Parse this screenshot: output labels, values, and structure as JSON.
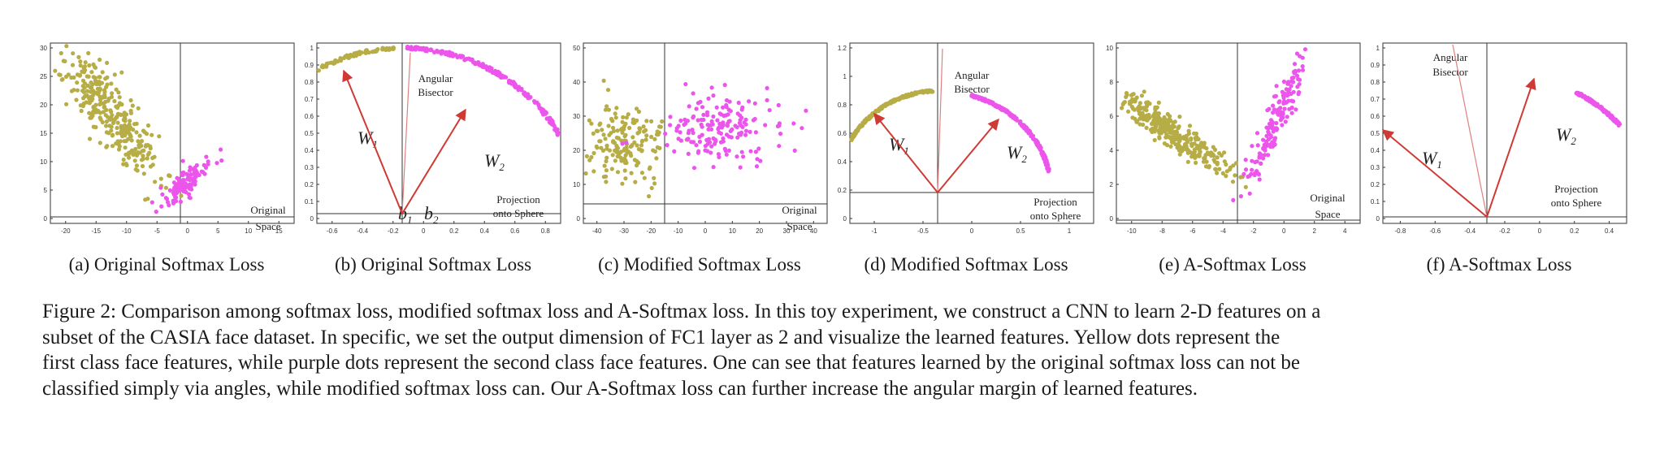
{
  "panels": [
    {
      "caption": "(a) Original Softmax Loss",
      "xticks": [
        "-20",
        "-15",
        "-10",
        "-5",
        "0",
        "5",
        "10",
        "15"
      ],
      "yticks": [
        "0",
        "5",
        "10",
        "15",
        "20",
        "25",
        "30"
      ],
      "texts": [
        [
          "Original",
          290,
          218
        ],
        [
          "Space",
          290,
          238
        ]
      ]
    },
    {
      "caption": "(b) Original Softmax Loss",
      "xticks": [
        "-0.6",
        "-0.4",
        "-0.2",
        "0",
        "0.2",
        "0.4",
        "0.6",
        "0.8"
      ],
      "yticks": [
        "0",
        "0.1",
        "0.2",
        "0.3",
        "0.4",
        "0.5",
        "0.6",
        "0.7",
        "0.8",
        "0.9",
        "1"
      ],
      "texts": [
        [
          "Angular",
          168,
          56
        ],
        [
          "Bisector",
          168,
          73
        ],
        [
          "Projection",
          270,
          205
        ],
        [
          "onto Sphere",
          270,
          222
        ]
      ],
      "vectors": [
        [
          "W",
          "1",
          72,
          132
        ],
        [
          "W",
          "2",
          228,
          160
        ],
        [
          "b",
          "1",
          122,
          225
        ],
        [
          "b",
          "2",
          154,
          225
        ]
      ]
    },
    {
      "caption": "(c) Modified Softmax Loss",
      "xticks": [
        "-40",
        "-30",
        "-20",
        "-10",
        "0",
        "10",
        "20",
        "30",
        "40"
      ],
      "yticks": [
        "0",
        "10",
        "20",
        "30",
        "40",
        "50"
      ],
      "texts": [
        [
          "Original",
          288,
          218
        ],
        [
          "Space",
          288,
          238
        ]
      ]
    },
    {
      "caption": "(d) Modified Softmax Loss",
      "xticks": [
        "-1",
        "-0.5",
        "0",
        "0.5",
        "1"
      ],
      "yticks": [
        "0",
        "0.2",
        "0.4",
        "0.6",
        "0.8",
        "1",
        "1.2"
      ],
      "texts": [
        [
          "Angular",
          172,
          52
        ],
        [
          "Bisector",
          172,
          69
        ],
        [
          "Projection",
          275,
          208
        ],
        [
          "onto Sphere",
          275,
          225
        ]
      ],
      "vectors": [
        [
          "W",
          "1",
          70,
          140
        ],
        [
          "W",
          "2",
          215,
          150
        ]
      ]
    },
    {
      "caption": "(e) A-Softmax Loss",
      "xticks": [
        "-10",
        "-8",
        "-6",
        "-4",
        "-2",
        "0",
        "2",
        "4"
      ],
      "yticks": [
        "0",
        "2",
        "4",
        "6",
        "8",
        "10"
      ],
      "texts": [
        [
          "Original",
          282,
          203
        ],
        [
          "Space",
          282,
          223
        ]
      ]
    },
    {
      "caption": "(f) A-Softmax Loss",
      "xticks": [
        "-0.8",
        "-0.6",
        "-0.4",
        "-0.2",
        "0",
        "0.2",
        "0.4"
      ],
      "yticks": [
        "0",
        "0.1",
        "0.2",
        "0.3",
        "0.4",
        "0.5",
        "0.6",
        "0.7",
        "0.8",
        "0.9",
        "1"
      ],
      "texts": [
        [
          "Angular",
          105,
          30
        ],
        [
          "Bisector",
          105,
          48
        ],
        [
          "Projection",
          260,
          192
        ],
        [
          "onto Sphere",
          260,
          209
        ]
      ],
      "vectors": [
        [
          "W",
          "1",
          70,
          157
        ],
        [
          "W",
          "2",
          235,
          128
        ]
      ]
    }
  ],
  "caption_lines": [
    "Figure 2: Comparison among softmax loss, modified softmax loss and A-Softmax loss. In this toy experiment, we construct a CNN to learn 2-D features on a",
    "subset of the CASIA face dataset. In specific, we set the output dimension of FC1 layer as 2 and visualize the learned features. Yellow dots represent the",
    "first class face features, while purple dots represent the second class face features. One can see that features learned by the original softmax loss can not be",
    "classified simply via angles, while modified softmax loss can. Our A-Softmax loss can further increase the angular margin of learned features."
  ],
  "colors": {
    "class1": "#b7ad46",
    "class2": "#ec55ec",
    "vector": "#cf3a34",
    "bisector": "#e08080",
    "axis": "#333333"
  }
}
